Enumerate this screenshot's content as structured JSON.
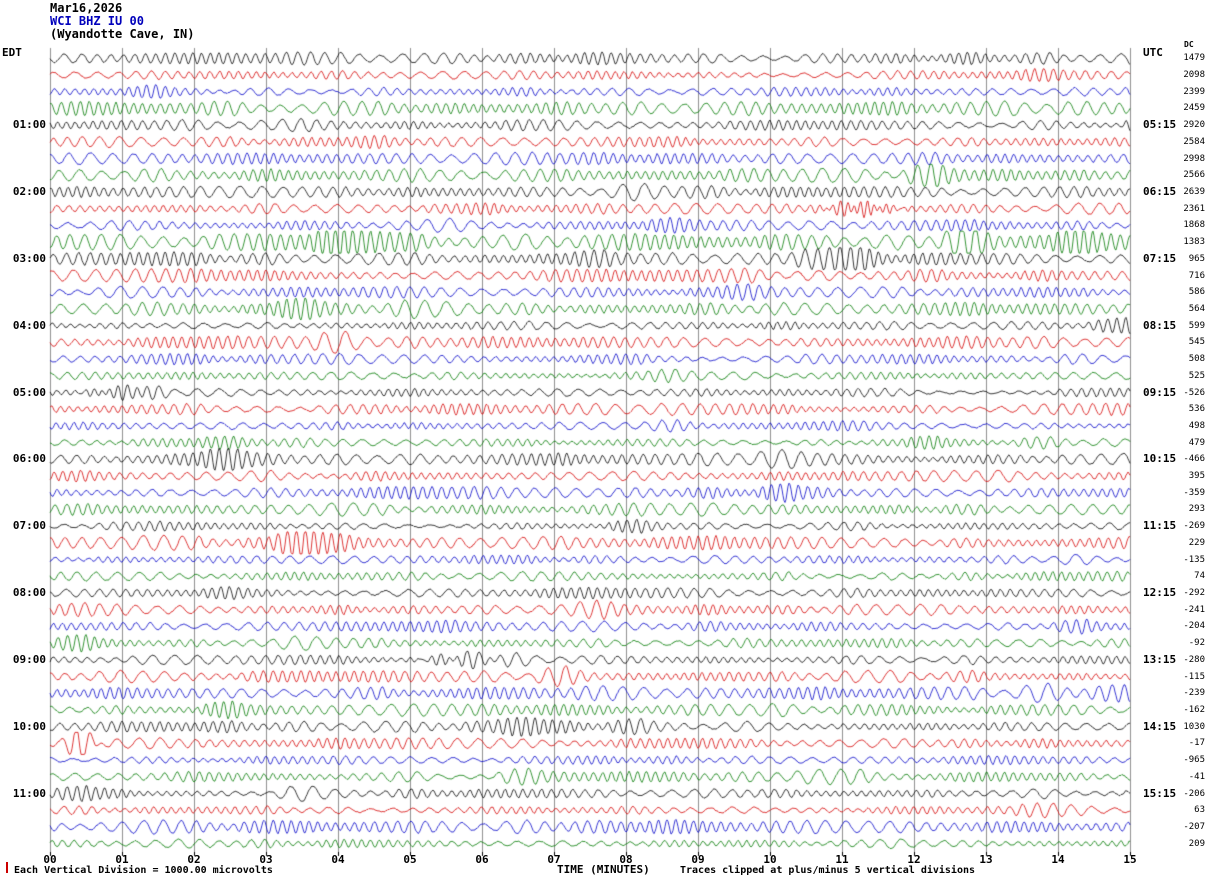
{
  "header": {
    "date": "Mar16,2026",
    "station": "WCI BHZ IU 00",
    "location": "(Wyandotte Cave, IN)"
  },
  "axis": {
    "left_tz": "EDT",
    "right_tz": "UTC",
    "dc_header": "DC",
    "x_title": "TIME (MINUTES)",
    "x_ticks": [
      "00",
      "01",
      "02",
      "03",
      "04",
      "05",
      "06",
      "07",
      "08",
      "09",
      "10",
      "11",
      "12",
      "13",
      "14",
      "15"
    ]
  },
  "footer": {
    "left": "Each Vertical Division = 1000.00 microvolts",
    "right": "Traces clipped at plus/minus 5 vertical divisions"
  },
  "palette": {
    "trace_black": "#000000",
    "trace_red": "#d40000",
    "trace_blue": "#0000c8",
    "trace_green": "#007a00",
    "grid": "#8f8f8f",
    "station": "#0000bb",
    "scale_tick": "#cc0000"
  },
  "rows": [
    {
      "edt": "",
      "utc": "",
      "color": "black",
      "dc": 1479
    },
    {
      "edt": "",
      "utc": "",
      "color": "red",
      "dc": 2098
    },
    {
      "edt": "",
      "utc": "",
      "color": "blue",
      "dc": 2399
    },
    {
      "edt": "",
      "utc": "",
      "color": "green",
      "dc": 2459
    },
    {
      "edt": "01:00",
      "utc": "05:15",
      "color": "black",
      "dc": 2920
    },
    {
      "edt": "",
      "utc": "",
      "color": "red",
      "dc": 2584
    },
    {
      "edt": "",
      "utc": "",
      "color": "blue",
      "dc": 2998
    },
    {
      "edt": "",
      "utc": "",
      "color": "green",
      "dc": 2566
    },
    {
      "edt": "02:00",
      "utc": "06:15",
      "color": "black",
      "dc": 2639
    },
    {
      "edt": "",
      "utc": "",
      "color": "red",
      "dc": 2361
    },
    {
      "edt": "",
      "utc": "",
      "color": "blue",
      "dc": 1868
    },
    {
      "edt": "",
      "utc": "",
      "color": "green",
      "dc": 1383
    },
    {
      "edt": "03:00",
      "utc": "07:15",
      "color": "black",
      "dc": 965
    },
    {
      "edt": "",
      "utc": "",
      "color": "red",
      "dc": 716
    },
    {
      "edt": "",
      "utc": "",
      "color": "blue",
      "dc": 586
    },
    {
      "edt": "",
      "utc": "",
      "color": "green",
      "dc": 564
    },
    {
      "edt": "04:00",
      "utc": "08:15",
      "color": "black",
      "dc": 599
    },
    {
      "edt": "",
      "utc": "",
      "color": "red",
      "dc": 545
    },
    {
      "edt": "",
      "utc": "",
      "color": "blue",
      "dc": 508
    },
    {
      "edt": "",
      "utc": "",
      "color": "green",
      "dc": 525
    },
    {
      "edt": "05:00",
      "utc": "09:15",
      "color": "black",
      "dc": -526
    },
    {
      "edt": "",
      "utc": "",
      "color": "red",
      "dc": 536
    },
    {
      "edt": "",
      "utc": "",
      "color": "blue",
      "dc": 498
    },
    {
      "edt": "",
      "utc": "",
      "color": "green",
      "dc": 479
    },
    {
      "edt": "06:00",
      "utc": "10:15",
      "color": "black",
      "dc": -466
    },
    {
      "edt": "",
      "utc": "",
      "color": "red",
      "dc": 395
    },
    {
      "edt": "",
      "utc": "",
      "color": "blue",
      "dc": -359
    },
    {
      "edt": "",
      "utc": "",
      "color": "green",
      "dc": 293
    },
    {
      "edt": "07:00",
      "utc": "11:15",
      "color": "black",
      "dc": -269
    },
    {
      "edt": "",
      "utc": "",
      "color": "red",
      "dc": 229
    },
    {
      "edt": "",
      "utc": "",
      "color": "blue",
      "dc": -135
    },
    {
      "edt": "",
      "utc": "",
      "color": "green",
      "dc": 74
    },
    {
      "edt": "08:00",
      "utc": "12:15",
      "color": "black",
      "dc": -292
    },
    {
      "edt": "",
      "utc": "",
      "color": "red",
      "dc": -241
    },
    {
      "edt": "",
      "utc": "",
      "color": "blue",
      "dc": -204
    },
    {
      "edt": "",
      "utc": "",
      "color": "green",
      "dc": -92
    },
    {
      "edt": "09:00",
      "utc": "13:15",
      "color": "black",
      "dc": -280
    },
    {
      "edt": "",
      "utc": "",
      "color": "red",
      "dc": -115
    },
    {
      "edt": "",
      "utc": "",
      "color": "blue",
      "dc": -239
    },
    {
      "edt": "",
      "utc": "",
      "color": "green",
      "dc": -162
    },
    {
      "edt": "10:00",
      "utc": "14:15",
      "color": "black",
      "dc": 1030
    },
    {
      "edt": "",
      "utc": "",
      "color": "red",
      "dc": -17
    },
    {
      "edt": "",
      "utc": "",
      "color": "blue",
      "dc": -965
    },
    {
      "edt": "",
      "utc": "",
      "color": "green",
      "dc": -41
    },
    {
      "edt": "11:00",
      "utc": "15:15",
      "color": "black",
      "dc": -206
    },
    {
      "edt": "",
      "utc": "",
      "color": "red",
      "dc": 63
    },
    {
      "edt": "",
      "utc": "",
      "color": "blue",
      "dc": -207
    },
    {
      "edt": "",
      "utc": "",
      "color": "green",
      "dc": 209
    }
  ],
  "events": [
    {
      "row": 41,
      "t_min": 0.45,
      "dur_min": 0.22,
      "amp": 15
    },
    {
      "row": 20,
      "t_min": 1.15,
      "dur_min": 0.5,
      "amp": 7
    },
    {
      "row": 36,
      "t_min": 5.9,
      "dur_min": 0.6,
      "amp": 6
    },
    {
      "row": 9,
      "t_min": 11.2,
      "dur_min": 0.5,
      "amp": 6
    }
  ],
  "chart_data": {
    "type": "line",
    "title": "WCI BHZ IU 00 (Wyandotte Cave, IN) helicorder - Mar16,2026",
    "xlabel": "TIME (MINUTES)",
    "x_range": [
      0,
      15
    ],
    "x_ticks": [
      "00",
      "01",
      "02",
      "03",
      "04",
      "05",
      "06",
      "07",
      "08",
      "09",
      "10",
      "11",
      "12",
      "13",
      "14",
      "15"
    ],
    "row_count": 48,
    "minutes_per_row": 15,
    "first_row_start_edt": "00:00",
    "last_row_start_edt": "11:45",
    "left_time_labels_edt": [
      "01:00",
      "02:00",
      "03:00",
      "04:00",
      "05:00",
      "06:00",
      "07:00",
      "08:00",
      "09:00",
      "10:00",
      "11:00"
    ],
    "right_time_labels_utc": [
      "05:15",
      "06:15",
      "07:15",
      "08:15",
      "09:15",
      "10:15",
      "11:15",
      "12:15",
      "13:15",
      "14:15",
      "15:15"
    ],
    "trace_color_cycle": [
      "black",
      "red",
      "blue",
      "green"
    ],
    "vertical_division_microvolts": 1000.0,
    "clip_divisions": 5,
    "grid": "vertical lines at each minute",
    "legend_position": "none",
    "content_note": "continuous seismic background noise traces; per-row DC offsets listed in rows[].dc"
  }
}
